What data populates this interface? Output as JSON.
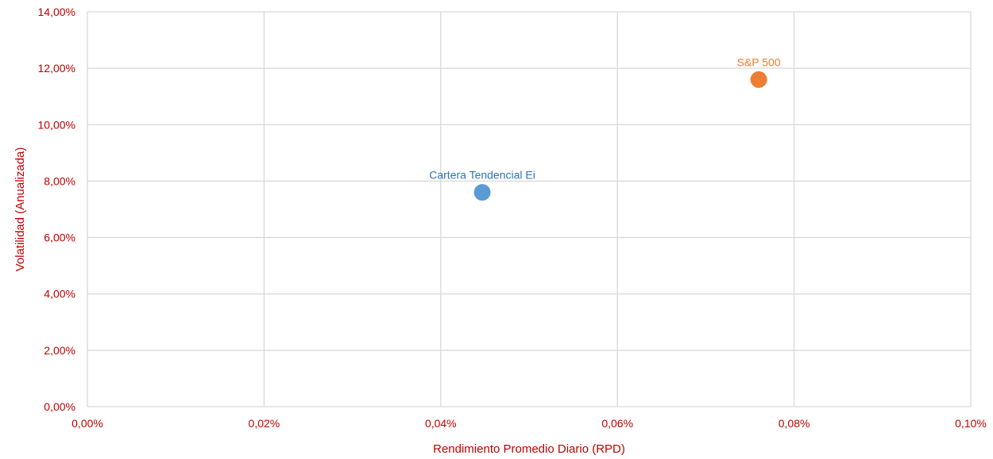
{
  "chart_data": {
    "type": "scatter",
    "title": "",
    "xlabel": "Rendimiento Promedio Diario (RPD)",
    "ylabel": "Volatilidad (Anualizada)",
    "xlim": [
      0,
      0.1
    ],
    "ylim": [
      0,
      14
    ],
    "x_ticks": [
      0,
      0.02,
      0.04,
      0.06,
      0.08,
      0.1
    ],
    "x_tick_labels": [
      "0,00%",
      "0,02%",
      "0,04%",
      "0,06%",
      "0,08%",
      "0,10%"
    ],
    "y_ticks": [
      0,
      2,
      4,
      6,
      8,
      10,
      12,
      14
    ],
    "y_tick_labels": [
      "0,00%",
      "2,00%",
      "4,00%",
      "6,00%",
      "8,00%",
      "10,00%",
      "12,00%",
      "14,00%"
    ],
    "grid": true,
    "legend": "none",
    "points": [
      {
        "label": "Cartera Tendencial Ei",
        "x": 0.0447,
        "y": 7.6,
        "color": "#5b9bd5",
        "label_color": "#2e75b6"
      },
      {
        "label": "S&P 500",
        "x": 0.076,
        "y": 11.6,
        "color": "#ed7d31",
        "label_color": "#ed7d31"
      }
    ],
    "axis_text_color": "#c00000",
    "grid_color": "#d9d9d9"
  }
}
